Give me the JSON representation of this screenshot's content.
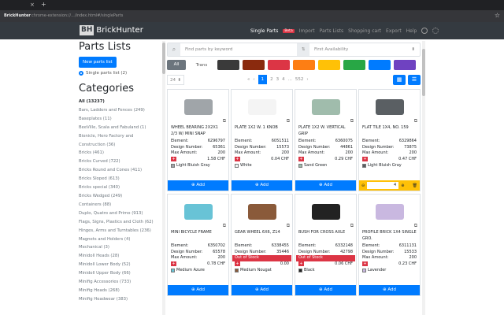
{
  "browser": {
    "tab_title": "BrickHunter",
    "url": "chrome-extension://.../index.html#/singleParts"
  },
  "nav": {
    "brand": "BrickHunter",
    "logo": "BH",
    "links": [
      "Single Parts",
      "Import",
      "Parts Lists",
      "Shopping cart",
      "Export",
      "Help"
    ],
    "beta": "Beta"
  },
  "sidebar": {
    "title": "Parts Lists",
    "new_button": "New parts list",
    "list_radio": "Single parts list (2)",
    "categories_title": "Categories",
    "categories": [
      "All (13237)",
      "Bars, Ladders and Fences (249)",
      "Baseplates (11)",
      "BeeVille, Scala and Fabuland (1)",
      "Bionicle, Hero Factory and",
      "Construction (36)",
      "Bricks (461)",
      "Bricks Curved (722)",
      "Bricks Round and Cones (411)",
      "Bricks Sloped (613)",
      "Bricks special (340)",
      "Bricks Wedged (249)",
      "Containers (88)",
      "Duplo, Quatro and Primo (913)",
      "Flags, Signs, Plastics and Cloth (62)",
      "Hinges, Arms and Turntables (236)",
      "Magnets and Holders (4)",
      "Mechanical (3)",
      "Minidoll Heads (28)",
      "Minidoll Lower Body (52)",
      "Minidoll Upper Body (66)",
      "Minifig Accessories (733)",
      "Minifig Heads (268)",
      "Minifig Headwear (383)"
    ]
  },
  "toolbar": {
    "search_placeholder": "Find parts by keyword",
    "sort": "First Availability",
    "all": "All",
    "trans": "Trans",
    "swatches": [
      "#3a3a3a",
      "#8a2a0e",
      "#dc3545",
      "#fd7e14",
      "#ffc107",
      "#28a745",
      "#007bff",
      "#6f42c1"
    ],
    "per_page": "24",
    "pages": [
      "«",
      "‹",
      "1",
      "2",
      "3",
      "4",
      "...",
      "552",
      "›"
    ]
  },
  "labels": {
    "element": "Element:",
    "design": "Design Number:",
    "max": "Max Amount:",
    "oos": "Out of Stock",
    "add": "⊕ Add"
  },
  "parts": [
    {
      "name": "WHEEL BEARING 2X2X1 2/3 W/ MINI SNAP",
      "element": "6296797",
      "design": "65361",
      "max": "200",
      "price": "1.58 CHF",
      "color": "Light Bluish Gray",
      "hex": "#a0a5a9",
      "oos": false,
      "qty": null
    },
    {
      "name": "PLATE 1X2 W. 1 KNOB",
      "element": "6051511",
      "design": "15573",
      "max": "200",
      "price": "0.04 CHF",
      "color": "White",
      "hex": "#f4f4f4",
      "oos": false,
      "qty": null
    },
    {
      "name": "PLATE 1X2 W. VERTICAL GRIP",
      "element": "6360075",
      "design": "44861",
      "max": "200",
      "price": "0.29 CHF",
      "color": "Sand Green",
      "hex": "#a0bcac",
      "oos": false,
      "qty": null
    },
    {
      "name": "FLAT TILE 1X4, NO. 159",
      "element": "6329864",
      "design": "73875",
      "max": "200",
      "price": "0.47 CHF",
      "color": "Light Bluish Gray",
      "hex": "#5a5f63",
      "oos": false,
      "qty": "4"
    },
    {
      "name": "MINI BICYCLE FRAME",
      "element": "6350702",
      "design": "65578",
      "max": "200",
      "price": "0.78 CHF",
      "color": "Medium Azure",
      "hex": "#68c3d6",
      "oos": false,
      "qty": null
    },
    {
      "name": "GEAR WHEEL 6X6, Z14",
      "element": "6338455",
      "design": "35446",
      "max": "",
      "price": "0.00",
      "color": "Medium Nougat",
      "hex": "#8a5a3a",
      "oos": true,
      "qty": null
    },
    {
      "name": "BUSH FOR CROSS AXLE",
      "element": "6332148",
      "design": "42798",
      "max": "",
      "price": "0.06 CHF",
      "color": "Black",
      "hex": "#222",
      "oos": true,
      "qty": null
    },
    {
      "name": "PROFILE BRICK 1x4 SINGLE GRO.",
      "element": "6311131",
      "design": "15533",
      "max": "200",
      "price": "0.23 CHF",
      "color": "Lavender",
      "hex": "#c9b8e0",
      "oos": false,
      "qty": null
    }
  ]
}
